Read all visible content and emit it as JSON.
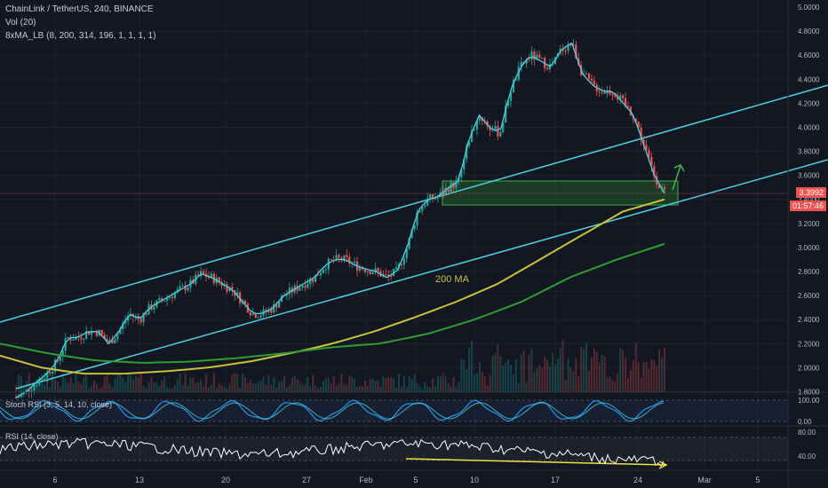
{
  "header": {
    "symbol_line": "ChainLink / TetherUS, 240, BINANCE",
    "vol_line": "Vol (20)",
    "ma_line": "8xMA_LB (8, 200, 314, 196, 1, 1, 1, 1)"
  },
  "price_tag": "3.3992",
  "countdown": "01:57:46",
  "annotation_200ma": "200 MA",
  "stoch_label": "Stoch RSI (3, 5, 14, 10, close)",
  "rsi_label": "RSI (14, close)",
  "colors": {
    "background": "#131722",
    "channel": "#4dd0e1",
    "ma200": "#c9c239",
    "ma_long": "#2e9e34",
    "candle_up": "#26a69a",
    "candle_down": "#ef5350",
    "zone": "#2a7d2e",
    "arrow": "#4caf50"
  },
  "chart_data": {
    "type": "candlestick",
    "title": "ChainLink / TetherUS, 240, BINANCE",
    "ylim": [
      1.7,
      5.0
    ],
    "y_ticks": [
      "5.0000",
      "4.8000",
      "4.6000",
      "4.4000",
      "4.2000",
      "4.0000",
      "3.8000",
      "3.6000",
      "3.4000",
      "3.2000",
      "3.0000",
      "2.8000",
      "2.6000",
      "2.4000",
      "2.2000",
      "2.0000",
      "1.8000"
    ],
    "x_ticks": [
      "6",
      "13",
      "20",
      "27",
      "Feb",
      "5",
      "10",
      "17",
      "24",
      "Mar",
      "5"
    ],
    "close_path": [
      1.75,
      1.8,
      1.88,
      1.95,
      2.05,
      2.25,
      2.25,
      2.3,
      2.3,
      2.2,
      2.3,
      2.45,
      2.4,
      2.5,
      2.55,
      2.6,
      2.65,
      2.7,
      2.78,
      2.75,
      2.7,
      2.65,
      2.55,
      2.45,
      2.45,
      2.5,
      2.6,
      2.65,
      2.7,
      2.75,
      2.85,
      2.9,
      2.9,
      2.85,
      2.82,
      2.8,
      2.75,
      2.8,
      3.0,
      3.3,
      3.4,
      3.42,
      3.5,
      3.55,
      3.9,
      4.1,
      4.0,
      3.95,
      4.3,
      4.5,
      4.6,
      4.55,
      4.5,
      4.65,
      4.7,
      4.45,
      4.35,
      4.3,
      4.3,
      4.2,
      4.1,
      3.85,
      3.6,
      3.45
    ],
    "ma200_path": [
      2.1,
      2.0,
      1.95,
      1.95,
      1.97,
      2.0,
      2.05,
      2.12,
      2.2,
      2.3,
      2.42,
      2.55,
      2.7,
      2.9,
      3.1,
      3.3,
      3.4
    ],
    "ma_long_path": [
      2.2,
      2.12,
      2.06,
      2.04,
      2.05,
      2.08,
      2.12,
      2.17,
      2.2,
      2.28,
      2.4,
      2.55,
      2.75,
      2.9,
      3.03
    ],
    "last_price": 3.3992,
    "stoch_rsi": {
      "label": "Stoch RSI (3, 5, 14, 10, close)",
      "ticks": [
        "100.00",
        "0.00"
      ]
    },
    "rsi": {
      "label": "RSI (14, close)",
      "ticks": [
        "80.00",
        "40.00"
      ]
    }
  }
}
